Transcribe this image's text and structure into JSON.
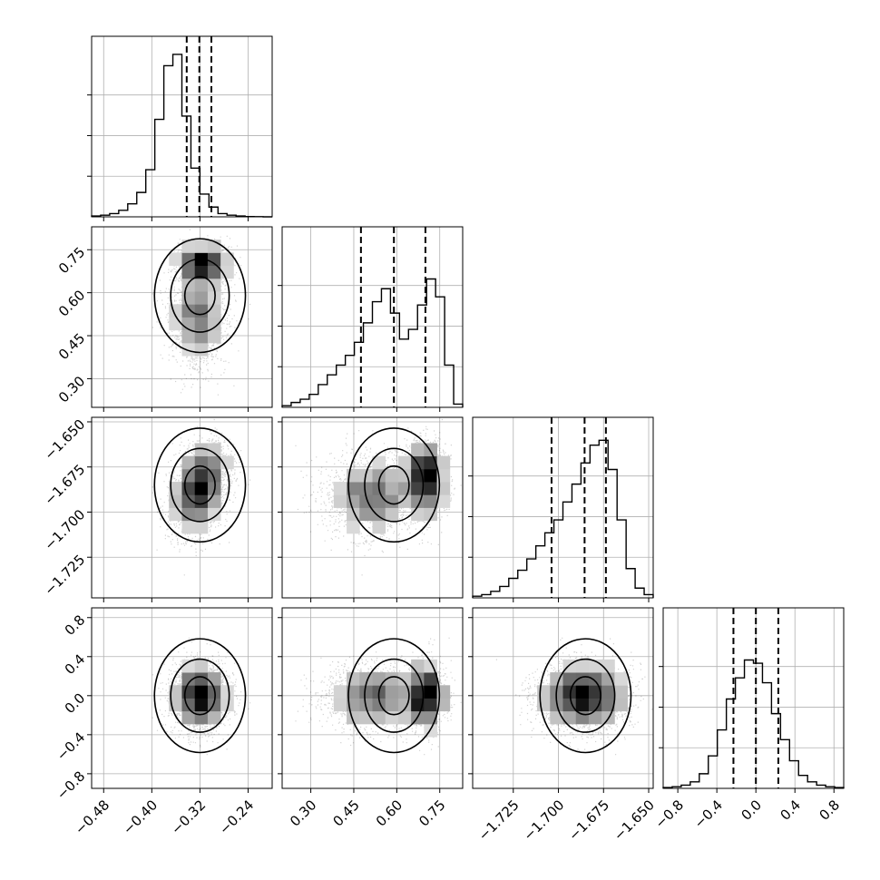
{
  "chart_data": {
    "type": "corner",
    "params": [
      {
        "mean": -0.32,
        "sd": 0.024,
        "range": [
          -0.5,
          -0.2
        ],
        "ticks": [
          -0.48,
          -0.4,
          -0.32,
          -0.24
        ],
        "tick_labels": [
          "−0.48",
          "−0.40",
          "−0.32",
          "−0.24"
        ],
        "quantiles": [
          -0.342,
          -0.321,
          -0.301
        ],
        "hist": [
          0.005,
          0.01,
          0.02,
          0.04,
          0.08,
          0.15,
          0.29,
          0.6,
          0.93,
          1.0,
          0.62,
          0.3,
          0.14,
          0.06,
          0.02,
          0.01,
          0.005,
          0.002,
          0.001,
          0.0
        ]
      },
      {
        "mean": 0.59,
        "sd": 0.1,
        "range": [
          0.2,
          0.83
        ],
        "ticks": [
          0.3,
          0.45,
          0.6,
          0.75
        ],
        "tick_labels": [
          "0.30",
          "0.45",
          "0.60",
          "0.75"
        ],
        "quantiles": [
          0.475,
          0.59,
          0.7
        ],
        "hist": [
          0.01,
          0.03,
          0.05,
          0.08,
          0.14,
          0.2,
          0.26,
          0.32,
          0.4,
          0.52,
          0.65,
          0.73,
          0.58,
          0.42,
          0.48,
          0.63,
          0.79,
          0.68,
          0.26,
          0.02
        ]
      },
      {
        "mean": -1.685,
        "sd": 0.012,
        "range": [
          -1.7475,
          -1.6475
        ],
        "ticks": [
          -1.725,
          -1.7,
          -1.675,
          -1.65
        ],
        "tick_labels": [
          "−1.725",
          "−1.700",
          "−1.675",
          "−1.650"
        ],
        "quantiles": [
          -1.7038,
          -1.6855,
          -1.6737
        ],
        "hist": [
          0.01,
          0.02,
          0.04,
          0.07,
          0.12,
          0.17,
          0.24,
          0.32,
          0.4,
          0.48,
          0.59,
          0.7,
          0.83,
          0.94,
          0.97,
          0.79,
          0.48,
          0.18,
          0.06,
          0.02
        ]
      },
      {
        "mean": 0.0,
        "sd": 0.17,
        "range": [
          -0.95,
          0.9
        ],
        "ticks": [
          -0.8,
          -0.4,
          0.0,
          0.4,
          0.8
        ],
        "tick_labels": [
          "−0.8",
          "−0.4",
          "0.0",
          "0.4",
          "0.8"
        ],
        "quantiles": [
          -0.23,
          0.0,
          0.23
        ],
        "hist": [
          0.005,
          0.01,
          0.02,
          0.04,
          0.09,
          0.2,
          0.36,
          0.55,
          0.68,
          0.79,
          0.77,
          0.65,
          0.46,
          0.3,
          0.17,
          0.08,
          0.04,
          0.02,
          0.01,
          0.005
        ]
      }
    ],
    "hist_ticks": [
      0.25,
      0.5,
      0.75
    ],
    "grid": true
  }
}
